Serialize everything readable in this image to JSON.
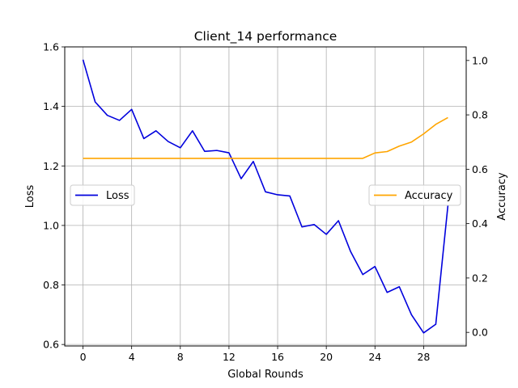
{
  "chart_data": {
    "type": "line",
    "title": "Client_14 performance",
    "xlabel": "Global Rounds",
    "ylabel_left": "Loss",
    "ylabel_right": "Accuracy",
    "x": [
      0,
      1,
      2,
      3,
      4,
      5,
      6,
      7,
      8,
      9,
      10,
      11,
      12,
      13,
      14,
      15,
      16,
      17,
      18,
      19,
      20,
      21,
      22,
      23,
      24,
      25,
      26,
      27,
      28,
      29,
      30
    ],
    "x_ticks": [
      0,
      4,
      8,
      12,
      16,
      20,
      24,
      28
    ],
    "x_tick_labels": [
      "0",
      "4",
      "8",
      "12",
      "16",
      "20",
      "24",
      "28"
    ],
    "xlim": [
      -1.5,
      31.5
    ],
    "ylim_left": [
      0.595,
      1.6
    ],
    "ylim_right": [
      -0.05,
      1.05
    ],
    "y_ticks_left": [
      0.6,
      0.8,
      1.0,
      1.2,
      1.4,
      1.6
    ],
    "y_tick_labels_left": [
      "0.6",
      "0.8",
      "1.0",
      "1.2",
      "1.4",
      "1.6"
    ],
    "y_ticks_right": [
      0.0,
      0.2,
      0.4,
      0.6,
      0.8,
      1.0
    ],
    "y_tick_labels_right": [
      "0.0",
      "0.2",
      "0.4",
      "0.6",
      "0.8",
      "1.0"
    ],
    "grid": true,
    "series": [
      {
        "name": "Loss",
        "axis": "left",
        "color": "#0000dd",
        "legend_placement": "center-left",
        "values": [
          1.557,
          1.415,
          1.37,
          1.353,
          1.39,
          1.292,
          1.318,
          1.282,
          1.261,
          1.318,
          1.249,
          1.252,
          1.244,
          1.157,
          1.215,
          1.113,
          1.103,
          1.099,
          0.995,
          1.003,
          0.97,
          1.016,
          0.912,
          0.835,
          0.862,
          0.775,
          0.794,
          0.7,
          0.639,
          0.668,
          1.068
        ]
      },
      {
        "name": "Accuracy",
        "axis": "right",
        "color": "#ffa500",
        "legend_placement": "center-right",
        "values": [
          0.64,
          0.64,
          0.64,
          0.64,
          0.64,
          0.64,
          0.64,
          0.64,
          0.64,
          0.64,
          0.64,
          0.64,
          0.64,
          0.64,
          0.64,
          0.64,
          0.64,
          0.64,
          0.64,
          0.64,
          0.64,
          0.64,
          0.64,
          0.64,
          0.66,
          0.665,
          0.685,
          0.7,
          0.73,
          0.765,
          0.79
        ]
      }
    ]
  }
}
